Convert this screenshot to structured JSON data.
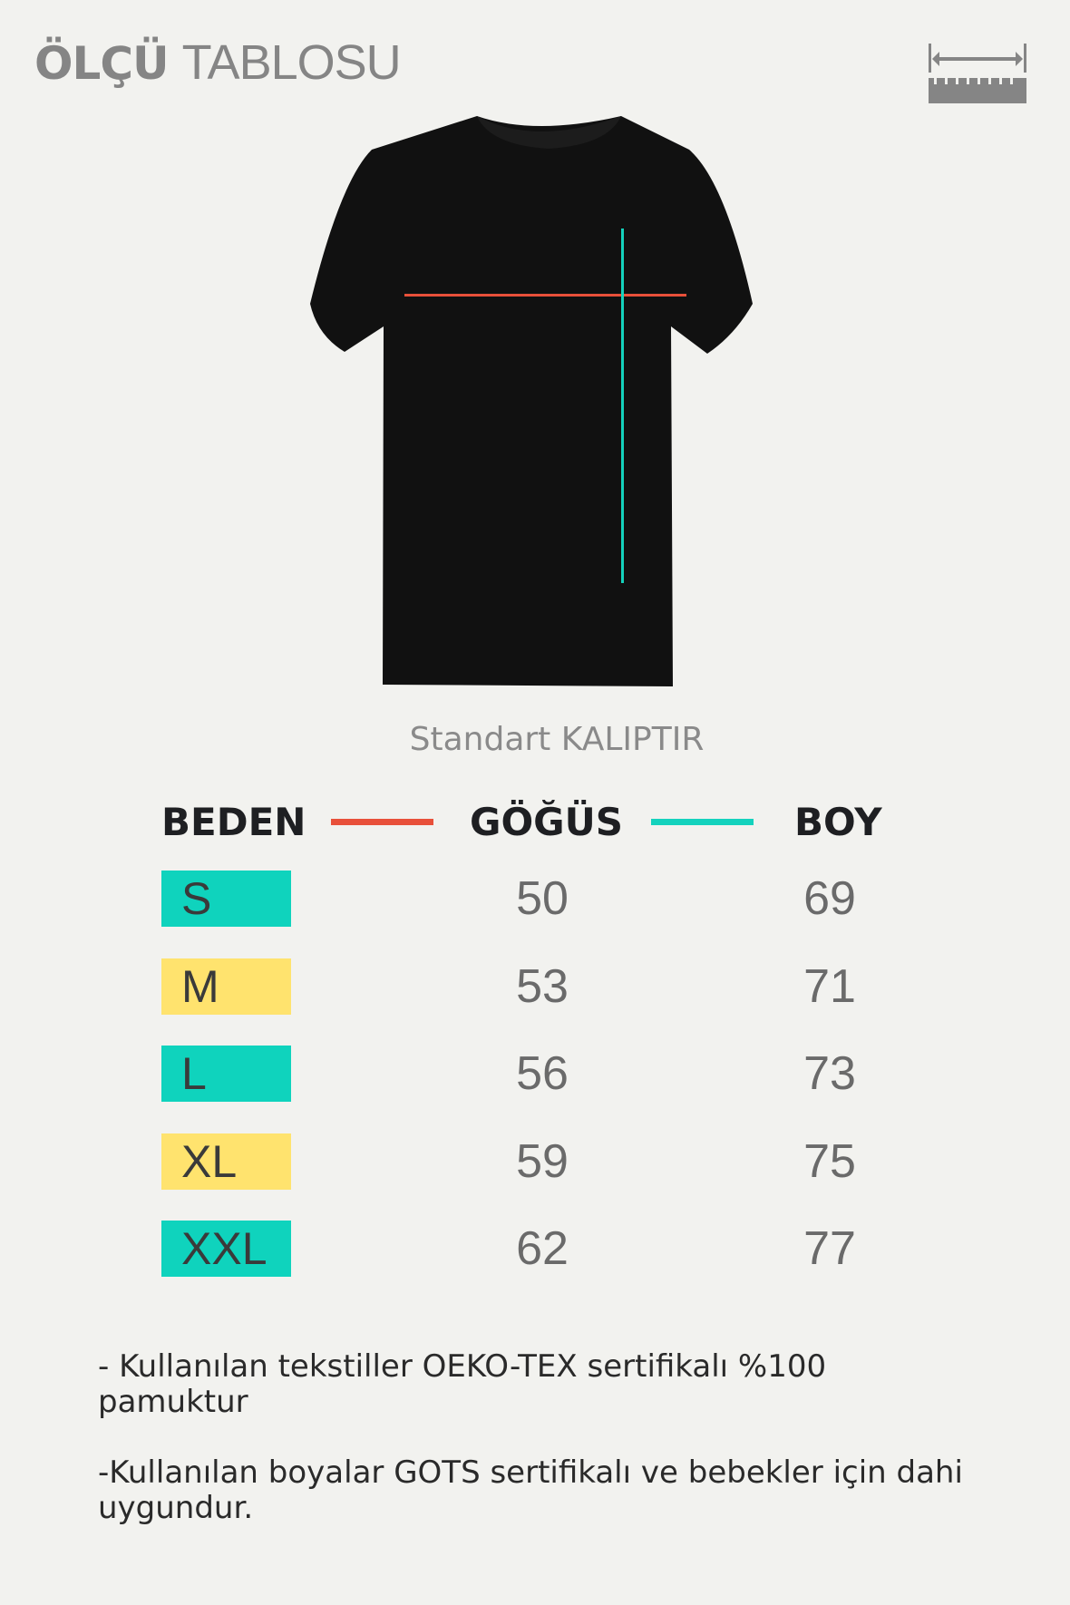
{
  "header": {
    "title_bold": "ÖLÇÜ",
    "title_light": "TABLOSU",
    "icon": "ruler-icon"
  },
  "subtitle": "Standart KALIPTIR",
  "colors": {
    "chest_line": "#e8503a",
    "length_line": "#14d2bd",
    "teal": "#0fd3bd",
    "yellow": "#ffe36e"
  },
  "table": {
    "headers": [
      "BEDEN",
      "GÖĞÜS",
      "BOY"
    ],
    "rows": [
      {
        "size": "S",
        "chest": "50",
        "length": "69",
        "color": "#0fd3bd"
      },
      {
        "size": "M",
        "chest": "53",
        "length": "71",
        "color": "#ffe36e"
      },
      {
        "size": "L",
        "chest": "56",
        "length": "73",
        "color": "#0fd3bd"
      },
      {
        "size": "XL",
        "chest": "59",
        "length": "75",
        "color": "#ffe36e"
      },
      {
        "size": "XXL",
        "chest": "62",
        "length": "77",
        "color": "#0fd3bd"
      }
    ]
  },
  "notes": [
    "  - Kullanılan tekstiller OEKO-TEX  sertifikalı %100 pamuktur",
    "-Kullanılan boyalar GOTS sertifikalı ve bebekler için dahi uygundur."
  ]
}
